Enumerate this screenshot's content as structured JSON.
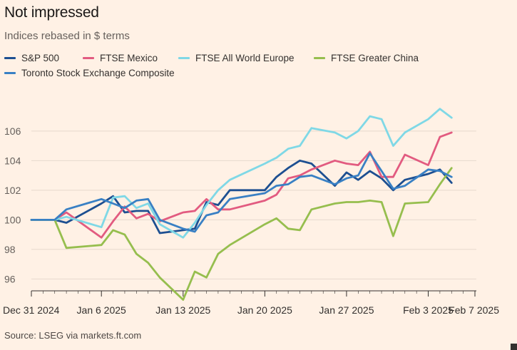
{
  "header": {
    "title": "Not impressed",
    "subtitle": "Indices rebased in $ terms"
  },
  "footer": {
    "source": "Source: LSEG via markets.ft.com"
  },
  "chart_data": {
    "type": "line",
    "title": "Not impressed",
    "subtitle": "Indices rebased in $ terms",
    "xlabel": "",
    "ylabel": "",
    "x": [
      "2024-12-31",
      "2025-01-02",
      "2025-01-03",
      "2025-01-06",
      "2025-01-07",
      "2025-01-08",
      "2025-01-09",
      "2025-01-10",
      "2025-01-13",
      "2025-01-14",
      "2025-01-15",
      "2025-01-16",
      "2025-01-17",
      "2025-01-20",
      "2025-01-21",
      "2025-01-22",
      "2025-01-23",
      "2025-01-24",
      "2025-01-27",
      "2025-01-28",
      "2025-01-29",
      "2025-01-30",
      "2025-01-31",
      "2025-02-03",
      "2025-02-04",
      "2025-02-05",
      "2025-02-06",
      "2025-02-07"
    ],
    "x_tick_labels": [
      "Dec 31 2024",
      "Jan 6 2025",
      "Jan 13 2025",
      "Jan 20 2025",
      "Jan 27 2025",
      "Feb 3 2025",
      "Feb 7 2025"
    ],
    "x_tick_positions": [
      "2024-12-31",
      "2025-01-06",
      "2025-01-13",
      "2025-01-20",
      "2025-01-27",
      "2025-02-03",
      "2025-02-07"
    ],
    "y_ticks": [
      96,
      98,
      100,
      102,
      104,
      106
    ],
    "ylim": [
      95.2,
      108.4
    ],
    "grid": "horizontal",
    "legend_position": "top",
    "series": [
      {
        "name": "S&P 500",
        "color": "#1D4F91",
        "data": [
          [
            "2024-12-31",
            100.0
          ],
          [
            "2025-01-02",
            100.0
          ],
          [
            "2025-01-03",
            99.8
          ],
          [
            "2025-01-06",
            101.1
          ],
          [
            "2025-01-07",
            101.6
          ],
          [
            "2025-01-08",
            100.5
          ],
          [
            "2025-01-09",
            100.6
          ],
          [
            "2025-01-10",
            100.6
          ],
          [
            "2025-01-11",
            99.1
          ],
          [
            "2025-01-13",
            99.3
          ],
          [
            "2025-01-14",
            99.4
          ],
          [
            "2025-01-15",
            101.2
          ],
          [
            "2025-01-16",
            101.0
          ],
          [
            "2025-01-17",
            102.0
          ],
          [
            "2025-01-20",
            102.0
          ],
          [
            "2025-01-21",
            102.9
          ],
          [
            "2025-01-22",
            103.5
          ],
          [
            "2025-01-23",
            104.0
          ],
          [
            "2025-01-24",
            103.8
          ],
          [
            "2025-01-26",
            102.3
          ],
          [
            "2025-01-27",
            103.2
          ],
          [
            "2025-01-28",
            102.7
          ],
          [
            "2025-01-29",
            103.3
          ],
          [
            "2025-01-30",
            102.8
          ],
          [
            "2025-01-31",
            102.0
          ],
          [
            "2025-02-01",
            102.7
          ],
          [
            "2025-02-03",
            103.1
          ],
          [
            "2025-02-04",
            103.4
          ],
          [
            "2025-02-05",
            102.5
          ]
        ]
      },
      {
        "name": "FTSE Mexico",
        "color": "#E25B80",
        "data": [
          [
            "2024-12-31",
            100.0
          ],
          [
            "2025-01-02",
            100.0
          ],
          [
            "2025-01-03",
            100.5
          ],
          [
            "2025-01-06",
            98.8
          ],
          [
            "2025-01-07",
            99.9
          ],
          [
            "2025-01-08",
            100.9
          ],
          [
            "2025-01-09",
            100.1
          ],
          [
            "2025-01-10",
            100.4
          ],
          [
            "2025-01-11",
            99.9
          ],
          [
            "2025-01-13",
            100.5
          ],
          [
            "2025-01-14",
            100.6
          ],
          [
            "2025-01-15",
            101.4
          ],
          [
            "2025-01-16",
            100.7
          ],
          [
            "2025-01-17",
            100.7
          ],
          [
            "2025-01-20",
            101.3
          ],
          [
            "2025-01-21",
            101.7
          ],
          [
            "2025-01-22",
            102.8
          ],
          [
            "2025-01-23",
            103.0
          ],
          [
            "2025-01-24",
            103.4
          ],
          [
            "2025-01-26",
            104.0
          ],
          [
            "2025-01-27",
            103.8
          ],
          [
            "2025-01-28",
            103.7
          ],
          [
            "2025-01-29",
            104.6
          ],
          [
            "2025-01-30",
            102.9
          ],
          [
            "2025-01-31",
            102.9
          ],
          [
            "2025-02-01",
            104.4
          ],
          [
            "2025-02-03",
            103.7
          ],
          [
            "2025-02-04",
            105.6
          ],
          [
            "2025-02-05",
            105.9
          ]
        ]
      },
      {
        "name": "FTSE All World Europe",
        "color": "#7FD8E6",
        "data": [
          [
            "2024-12-31",
            100.0
          ],
          [
            "2025-01-02",
            100.0
          ],
          [
            "2025-01-03",
            100.2
          ],
          [
            "2025-01-06",
            99.5
          ],
          [
            "2025-01-07",
            101.5
          ],
          [
            "2025-01-08",
            101.6
          ],
          [
            "2025-01-09",
            100.8
          ],
          [
            "2025-01-10",
            101.1
          ],
          [
            "2025-01-11",
            99.7
          ],
          [
            "2025-01-13",
            98.8
          ],
          [
            "2025-01-14",
            99.8
          ],
          [
            "2025-01-15",
            101.0
          ],
          [
            "2025-01-16",
            102.0
          ],
          [
            "2025-01-17",
            102.7
          ],
          [
            "2025-01-20",
            103.8
          ],
          [
            "2025-01-21",
            104.2
          ],
          [
            "2025-01-22",
            104.8
          ],
          [
            "2025-01-23",
            105.0
          ],
          [
            "2025-01-24",
            106.2
          ],
          [
            "2025-01-26",
            105.9
          ],
          [
            "2025-01-27",
            105.5
          ],
          [
            "2025-01-28",
            106.0
          ],
          [
            "2025-01-29",
            107.0
          ],
          [
            "2025-01-30",
            106.8
          ],
          [
            "2025-01-31",
            105.0
          ],
          [
            "2025-02-01",
            105.9
          ],
          [
            "2025-02-03",
            106.8
          ],
          [
            "2025-02-04",
            107.5
          ],
          [
            "2025-02-05",
            106.9
          ]
        ]
      },
      {
        "name": "FTSE Greater China",
        "color": "#96BE4E",
        "data": [
          [
            "2024-12-31",
            100.0
          ],
          [
            "2025-01-02",
            100.0
          ],
          [
            "2025-01-03",
            98.1
          ],
          [
            "2025-01-06",
            98.3
          ],
          [
            "2025-01-07",
            99.3
          ],
          [
            "2025-01-08",
            99.0
          ],
          [
            "2025-01-09",
            97.7
          ],
          [
            "2025-01-10",
            97.1
          ],
          [
            "2025-01-11",
            96.1
          ],
          [
            "2025-01-13",
            94.6
          ],
          [
            "2025-01-14",
            96.5
          ],
          [
            "2025-01-15",
            96.1
          ],
          [
            "2025-01-16",
            97.7
          ],
          [
            "2025-01-17",
            98.3
          ],
          [
            "2025-01-20",
            99.7
          ],
          [
            "2025-01-21",
            100.1
          ],
          [
            "2025-01-22",
            99.4
          ],
          [
            "2025-01-23",
            99.3
          ],
          [
            "2025-01-24",
            100.7
          ],
          [
            "2025-01-26",
            101.1
          ],
          [
            "2025-01-27",
            101.2
          ],
          [
            "2025-01-28",
            101.2
          ],
          [
            "2025-01-29",
            101.3
          ],
          [
            "2025-01-30",
            101.2
          ],
          [
            "2025-01-31",
            98.9
          ],
          [
            "2025-02-01",
            101.1
          ],
          [
            "2025-02-03",
            101.2
          ],
          [
            "2025-02-04",
            102.4
          ],
          [
            "2025-02-05",
            103.5
          ]
        ]
      },
      {
        "name": "Toronto Stock Exchange Composite",
        "color": "#3980C4",
        "data": [
          [
            "2024-12-31",
            100.0
          ],
          [
            "2025-01-02",
            100.0
          ],
          [
            "2025-01-03",
            100.7
          ],
          [
            "2025-01-06",
            101.4
          ],
          [
            "2025-01-07",
            101.1
          ],
          [
            "2025-01-08",
            100.8
          ],
          [
            "2025-01-09",
            101.3
          ],
          [
            "2025-01-10",
            101.4
          ],
          [
            "2025-01-11",
            100.0
          ],
          [
            "2025-01-13",
            99.4
          ],
          [
            "2025-01-14",
            99.2
          ],
          [
            "2025-01-15",
            100.3
          ],
          [
            "2025-01-16",
            100.5
          ],
          [
            "2025-01-17",
            101.4
          ],
          [
            "2025-01-20",
            101.8
          ],
          [
            "2025-01-21",
            102.3
          ],
          [
            "2025-01-22",
            102.4
          ],
          [
            "2025-01-23",
            102.9
          ],
          [
            "2025-01-24",
            103.0
          ],
          [
            "2025-01-26",
            102.4
          ],
          [
            "2025-01-27",
            102.8
          ],
          [
            "2025-01-28",
            103.0
          ],
          [
            "2025-01-29",
            104.5
          ],
          [
            "2025-01-30",
            103.3
          ],
          [
            "2025-01-31",
            102.1
          ],
          [
            "2025-02-01",
            102.3
          ],
          [
            "2025-02-03",
            103.4
          ],
          [
            "2025-02-04",
            103.3
          ],
          [
            "2025-02-05",
            102.9
          ]
        ]
      }
    ]
  }
}
